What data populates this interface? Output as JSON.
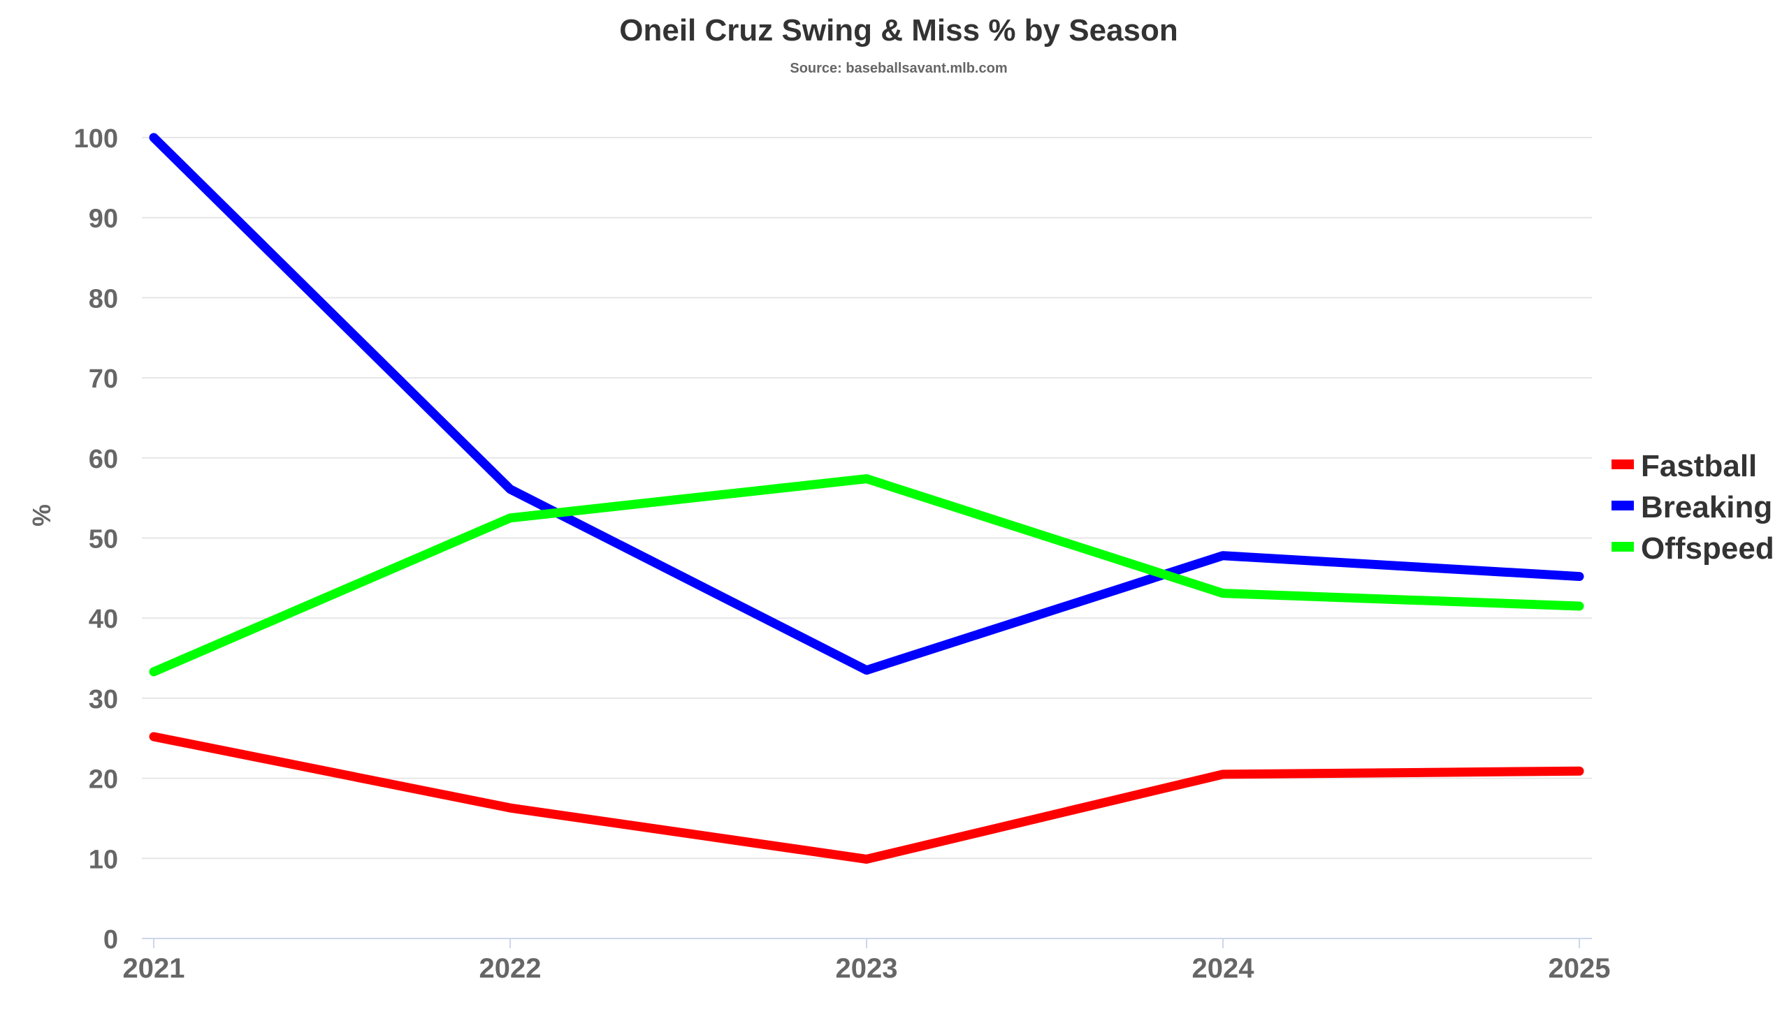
{
  "chart_data": {
    "type": "line",
    "title": "Oneil Cruz Swing & Miss % by Season",
    "subtitle": "Source: baseballsavant.mlb.com",
    "xlabel": "",
    "ylabel": "%",
    "x": [
      "2021",
      "2022",
      "2023",
      "2024",
      "2025"
    ],
    "ylim": [
      0,
      100
    ],
    "yticks": [
      0,
      10,
      20,
      30,
      40,
      50,
      60,
      70,
      80,
      90,
      100
    ],
    "grid": true,
    "legend_position": "right",
    "series": [
      {
        "name": "Fastball",
        "color": "#ff0000",
        "values": [
          25.2,
          16.3,
          9.9,
          20.5,
          20.9
        ]
      },
      {
        "name": "Breaking",
        "color": "#0000ff",
        "values": [
          100,
          56.1,
          33.5,
          47.8,
          45.2
        ]
      },
      {
        "name": "Offspeed",
        "color": "#00ff00",
        "values": [
          33.3,
          52.5,
          57.4,
          43.1,
          41.5
        ]
      }
    ]
  }
}
